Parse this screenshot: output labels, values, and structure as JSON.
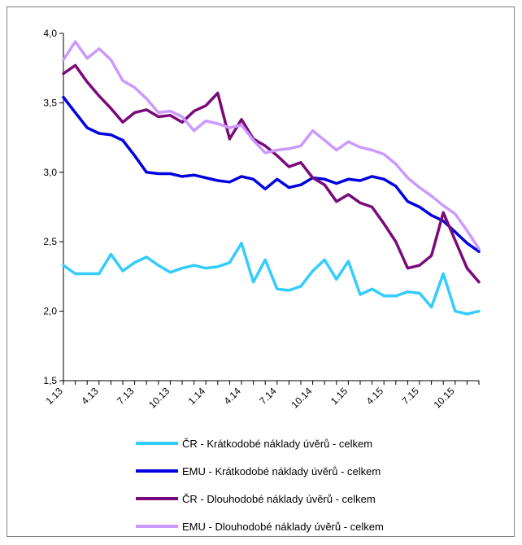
{
  "chart_data": {
    "type": "line",
    "title": "",
    "xlabel": "",
    "ylabel": "",
    "ylim": [
      1.5,
      4.0
    ],
    "yticks": [
      "1,5",
      "2,0",
      "2,5",
      "3,0",
      "3,5",
      "4,0"
    ],
    "ytick_values": [
      1.5,
      2.0,
      2.5,
      3.0,
      3.5,
      4.0
    ],
    "x_tick_labels": [
      "1.13",
      "4.13",
      "7.13",
      "10.13",
      "1.14",
      "4.14",
      "7.14",
      "10.14",
      "1.15",
      "4.15",
      "7.15",
      "10.15"
    ],
    "x_tick_positions": [
      1,
      4,
      7,
      10,
      13,
      16,
      19,
      22,
      25,
      28,
      31,
      34
    ],
    "x": [
      1,
      2,
      3,
      4,
      5,
      6,
      7,
      8,
      9,
      10,
      11,
      12,
      13,
      14,
      15,
      16,
      17,
      18,
      19,
      20,
      21,
      22,
      23,
      24,
      25,
      26,
      27,
      28,
      29,
      30,
      31,
      32,
      33,
      34,
      35,
      36
    ],
    "grid": false,
    "legend_position": "bottom",
    "series": [
      {
        "name": "ČR - Krátkodobé náklady úvěrů - celkem",
        "color": "#33ccff",
        "values": [
          2.33,
          2.27,
          2.27,
          2.27,
          2.41,
          2.29,
          2.35,
          2.39,
          2.33,
          2.28,
          2.31,
          2.33,
          2.31,
          2.32,
          2.35,
          2.49,
          2.21,
          2.37,
          2.16,
          2.15,
          2.18,
          2.29,
          2.37,
          2.23,
          2.36,
          2.12,
          2.16,
          2.11,
          2.11,
          2.14,
          2.13,
          2.03,
          2.27,
          2.0,
          1.98,
          2.0
        ]
      },
      {
        "name": "EMU - Krátkodobé náklady úvěrů - celkem",
        "color": "#0000e0",
        "values": [
          3.54,
          3.43,
          3.32,
          3.28,
          3.27,
          3.23,
          3.12,
          3.0,
          2.99,
          2.99,
          2.97,
          2.98,
          2.96,
          2.94,
          2.93,
          2.97,
          2.95,
          2.88,
          2.95,
          2.89,
          2.91,
          2.96,
          2.95,
          2.92,
          2.95,
          2.94,
          2.97,
          2.95,
          2.9,
          2.79,
          2.75,
          2.69,
          2.65,
          2.57,
          2.49,
          2.43
        ]
      },
      {
        "name": "ČR - Dlouhodobé náklady úvěrů - celkem",
        "color": "#7a0a7a",
        "values": [
          3.71,
          3.77,
          3.65,
          3.55,
          3.46,
          3.36,
          3.43,
          3.45,
          3.4,
          3.41,
          3.36,
          3.44,
          3.48,
          3.57,
          3.24,
          3.38,
          3.24,
          3.19,
          3.12,
          3.04,
          3.07,
          2.96,
          2.91,
          2.79,
          2.84,
          2.78,
          2.75,
          2.63,
          2.5,
          2.31,
          2.33,
          2.4,
          2.71,
          2.51,
          2.31,
          2.21
        ]
      },
      {
        "name": "EMU - Dlouhodobé náklady úvěrů - celkem",
        "color": "#cc99ff",
        "values": [
          3.81,
          3.94,
          3.82,
          3.89,
          3.81,
          3.66,
          3.61,
          3.53,
          3.43,
          3.44,
          3.4,
          3.3,
          3.37,
          3.35,
          3.32,
          3.34,
          3.23,
          3.14,
          3.16,
          3.17,
          3.19,
          3.3,
          3.23,
          3.16,
          3.22,
          3.18,
          3.16,
          3.13,
          3.06,
          2.96,
          2.89,
          2.83,
          2.76,
          2.7,
          2.58,
          2.45
        ]
      }
    ]
  }
}
